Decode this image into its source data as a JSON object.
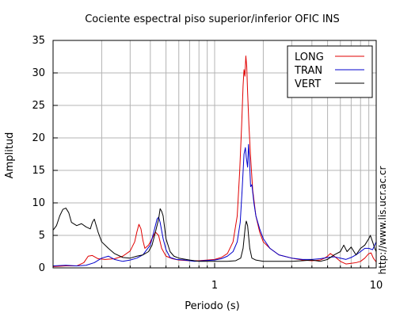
{
  "chart_data": {
    "type": "line",
    "title": "Cociente espectral piso superior/inferior  OFIC INS",
    "xlabel": "Periodo (s)",
    "ylabel": "Amplitud",
    "x_scale": "log",
    "xlim": [
      0.1,
      10
    ],
    "ylim": [
      0,
      35
    ],
    "x_ticks": [
      {
        "value": 1,
        "label": "1"
      },
      {
        "value": 10,
        "label": "10"
      }
    ],
    "y_ticks": [
      0,
      5,
      10,
      15,
      20,
      25,
      30,
      35
    ],
    "grid": true,
    "legend_position": "top-right",
    "watermark": "http://www.lis.ucr.ac.cr",
    "series": [
      {
        "name": "LONG",
        "color": "#e00000",
        "points": [
          [
            0.1,
            0.2
          ],
          [
            0.12,
            0.3
          ],
          [
            0.14,
            0.3
          ],
          [
            0.155,
            0.8
          ],
          [
            0.165,
            1.8
          ],
          [
            0.175,
            1.9
          ],
          [
            0.19,
            1.4
          ],
          [
            0.21,
            1.3
          ],
          [
            0.24,
            1.4
          ],
          [
            0.27,
            1.8
          ],
          [
            0.3,
            2.6
          ],
          [
            0.32,
            4.0
          ],
          [
            0.33,
            5.5
          ],
          [
            0.34,
            6.7
          ],
          [
            0.35,
            6.0
          ],
          [
            0.36,
            4.2
          ],
          [
            0.37,
            3.0
          ],
          [
            0.39,
            3.5
          ],
          [
            0.41,
            4.5
          ],
          [
            0.43,
            5.5
          ],
          [
            0.45,
            5.0
          ],
          [
            0.47,
            3.0
          ],
          [
            0.5,
            1.8
          ],
          [
            0.55,
            1.4
          ],
          [
            0.6,
            1.2
          ],
          [
            0.7,
            1.1
          ],
          [
            0.8,
            1.1
          ],
          [
            0.9,
            1.2
          ],
          [
            1.0,
            1.3
          ],
          [
            1.1,
            1.6
          ],
          [
            1.2,
            2.2
          ],
          [
            1.3,
            4.0
          ],
          [
            1.38,
            8.0
          ],
          [
            1.43,
            15.0
          ],
          [
            1.47,
            22.0
          ],
          [
            1.5,
            28.0
          ],
          [
            1.52,
            30.5
          ],
          [
            1.54,
            29.5
          ],
          [
            1.56,
            32.6
          ],
          [
            1.58,
            31.0
          ],
          [
            1.6,
            27.0
          ],
          [
            1.63,
            22.0
          ],
          [
            1.67,
            17.0
          ],
          [
            1.72,
            12.0
          ],
          [
            1.8,
            8.0
          ],
          [
            1.9,
            5.5
          ],
          [
            2.0,
            4.0
          ],
          [
            2.2,
            3.0
          ],
          [
            2.5,
            2.0
          ],
          [
            3.0,
            1.5
          ],
          [
            3.5,
            1.2
          ],
          [
            4.0,
            1.1
          ],
          [
            4.5,
            1.2
          ],
          [
            4.8,
            1.5
          ],
          [
            5.0,
            1.8
          ],
          [
            5.2,
            2.2
          ],
          [
            5.5,
            1.8
          ],
          [
            6.0,
            1.0
          ],
          [
            6.5,
            0.6
          ],
          [
            7.0,
            0.7
          ],
          [
            7.5,
            0.8
          ],
          [
            8.0,
            1.0
          ],
          [
            8.5,
            1.5
          ],
          [
            9.0,
            2.2
          ],
          [
            9.3,
            2.3
          ],
          [
            9.6,
            1.5
          ],
          [
            10.0,
            0.9
          ]
        ]
      },
      {
        "name": "TRAN",
        "color": "#0000cc",
        "points": [
          [
            0.1,
            0.3
          ],
          [
            0.12,
            0.4
          ],
          [
            0.14,
            0.3
          ],
          [
            0.16,
            0.4
          ],
          [
            0.18,
            0.8
          ],
          [
            0.2,
            1.5
          ],
          [
            0.22,
            1.8
          ],
          [
            0.24,
            1.3
          ],
          [
            0.27,
            1.0
          ],
          [
            0.3,
            1.2
          ],
          [
            0.33,
            1.5
          ],
          [
            0.36,
            2.0
          ],
          [
            0.38,
            2.8
          ],
          [
            0.4,
            3.5
          ],
          [
            0.42,
            5.5
          ],
          [
            0.44,
            7.5
          ],
          [
            0.45,
            7.8
          ],
          [
            0.46,
            7.0
          ],
          [
            0.48,
            4.5
          ],
          [
            0.5,
            2.8
          ],
          [
            0.53,
            1.6
          ],
          [
            0.58,
            1.3
          ],
          [
            0.65,
            1.2
          ],
          [
            0.75,
            1.0
          ],
          [
            0.85,
            1.1
          ],
          [
            1.0,
            1.2
          ],
          [
            1.1,
            1.4
          ],
          [
            1.2,
            1.8
          ],
          [
            1.3,
            2.5
          ],
          [
            1.38,
            4.0
          ],
          [
            1.44,
            7.0
          ],
          [
            1.48,
            12.0
          ],
          [
            1.52,
            17.5
          ],
          [
            1.55,
            18.5
          ],
          [
            1.57,
            17.0
          ],
          [
            1.6,
            15.5
          ],
          [
            1.62,
            19.0
          ],
          [
            1.64,
            17.0
          ],
          [
            1.67,
            12.5
          ],
          [
            1.7,
            12.8
          ],
          [
            1.75,
            10.0
          ],
          [
            1.8,
            8.0
          ],
          [
            1.9,
            6.0
          ],
          [
            2.0,
            4.5
          ],
          [
            2.2,
            3.0
          ],
          [
            2.5,
            2.0
          ],
          [
            3.0,
            1.5
          ],
          [
            3.5,
            1.3
          ],
          [
            4.0,
            1.3
          ],
          [
            4.5,
            1.4
          ],
          [
            5.0,
            1.6
          ],
          [
            5.5,
            1.7
          ],
          [
            6.0,
            1.5
          ],
          [
            6.5,
            1.3
          ],
          [
            7.0,
            1.6
          ],
          [
            7.5,
            2.0
          ],
          [
            8.0,
            2.5
          ],
          [
            8.5,
            3.0
          ],
          [
            9.0,
            3.0
          ],
          [
            9.5,
            2.8
          ],
          [
            10.0,
            4.0
          ]
        ]
      },
      {
        "name": "VERT",
        "color": "#000000",
        "points": [
          [
            0.1,
            5.8
          ],
          [
            0.105,
            6.5
          ],
          [
            0.11,
            8.0
          ],
          [
            0.115,
            9.0
          ],
          [
            0.12,
            9.2
          ],
          [
            0.125,
            8.5
          ],
          [
            0.13,
            7.0
          ],
          [
            0.14,
            6.5
          ],
          [
            0.15,
            6.8
          ],
          [
            0.16,
            6.3
          ],
          [
            0.17,
            6.0
          ],
          [
            0.175,
            7.0
          ],
          [
            0.18,
            7.5
          ],
          [
            0.19,
            5.5
          ],
          [
            0.2,
            4.0
          ],
          [
            0.22,
            3.0
          ],
          [
            0.24,
            2.2
          ],
          [
            0.27,
            1.6
          ],
          [
            0.3,
            1.5
          ],
          [
            0.33,
            1.8
          ],
          [
            0.36,
            2.0
          ],
          [
            0.39,
            2.5
          ],
          [
            0.41,
            3.5
          ],
          [
            0.43,
            5.5
          ],
          [
            0.45,
            7.5
          ],
          [
            0.46,
            9.1
          ],
          [
            0.47,
            8.7
          ],
          [
            0.48,
            8.0
          ],
          [
            0.5,
            4.5
          ],
          [
            0.53,
            2.5
          ],
          [
            0.56,
            1.8
          ],
          [
            0.6,
            1.5
          ],
          [
            0.7,
            1.2
          ],
          [
            0.8,
            1.0
          ],
          [
            0.9,
            1.0
          ],
          [
            1.0,
            1.0
          ],
          [
            1.2,
            1.0
          ],
          [
            1.35,
            1.1
          ],
          [
            1.45,
            1.5
          ],
          [
            1.5,
            3.0
          ],
          [
            1.55,
            6.5
          ],
          [
            1.57,
            7.2
          ],
          [
            1.6,
            6.5
          ],
          [
            1.65,
            3.0
          ],
          [
            1.7,
            1.5
          ],
          [
            1.8,
            1.2
          ],
          [
            2.0,
            1.0
          ],
          [
            2.5,
            1.0
          ],
          [
            3.0,
            1.0
          ],
          [
            3.5,
            1.1
          ],
          [
            4.0,
            1.2
          ],
          [
            4.5,
            1.0
          ],
          [
            5.0,
            1.3
          ],
          [
            5.5,
            2.0
          ],
          [
            6.0,
            2.5
          ],
          [
            6.3,
            3.5
          ],
          [
            6.6,
            2.5
          ],
          [
            7.0,
            3.2
          ],
          [
            7.5,
            2.0
          ],
          [
            8.0,
            3.0
          ],
          [
            8.5,
            3.5
          ],
          [
            9.0,
            4.5
          ],
          [
            9.2,
            5.0
          ],
          [
            9.5,
            4.0
          ],
          [
            9.8,
            3.0
          ],
          [
            10.0,
            2.5
          ]
        ]
      }
    ]
  }
}
